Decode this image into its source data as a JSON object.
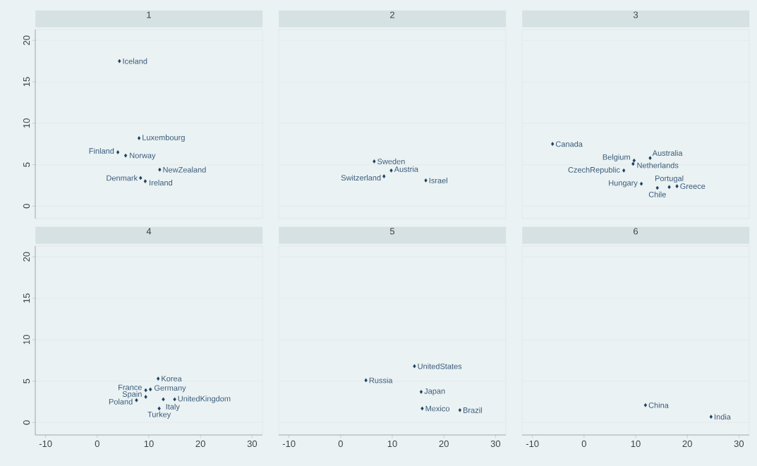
{
  "chart_data": [
    {
      "type": "scatter",
      "title": "1",
      "color": "#1c3d5e",
      "marker": "diamond",
      "grid": "y",
      "tick_labels": "y",
      "xlim": [
        -12,
        32
      ],
      "ylim": [
        -1.5,
        21.3
      ],
      "xticks": [
        -10,
        0,
        10,
        20,
        30
      ],
      "yticks": [
        0,
        5,
        10,
        15,
        20
      ],
      "x": [
        4.3,
        8.1,
        4.0,
        5.5,
        12.1,
        8.4,
        9.3
      ],
      "values": [
        17.5,
        8.2,
        6.5,
        6.1,
        4.4,
        3.4,
        3.0
      ],
      "annotations": [
        {
          "text": "Iceland",
          "x": 4.3,
          "y": 17.5
        },
        {
          "text": "Luxembourg",
          "x": 8.1,
          "y": 8.2
        },
        {
          "text": "Finland",
          "x": 4.0,
          "y": 6.5
        },
        {
          "text": "Norway",
          "x": 5.5,
          "y": 6.1
        },
        {
          "text": "NewZealand",
          "x": 12.1,
          "y": 4.4
        },
        {
          "text": "Denmark",
          "x": 8.4,
          "y": 3.4
        },
        {
          "text": "Ireland",
          "x": 9.3,
          "y": 3.0
        }
      ]
    },
    {
      "type": "scatter",
      "title": "2",
      "color": "#1c3d5e",
      "marker": "diamond",
      "grid": "y",
      "tick_labels": false,
      "xlim": [
        -12,
        32
      ],
      "ylim": [
        -1.5,
        21.3
      ],
      "xticks": [
        -10,
        0,
        10,
        20,
        30
      ],
      "yticks": [
        0,
        5,
        10,
        15,
        20
      ],
      "x": [
        6.5,
        9.8,
        8.4,
        16.5
      ],
      "values": [
        5.4,
        4.3,
        3.6,
        3.1
      ],
      "annotations": [
        {
          "text": "Sweden",
          "x": 6.5,
          "y": 5.4
        },
        {
          "text": "Austria",
          "x": 9.8,
          "y": 4.3
        },
        {
          "text": "Switzerland",
          "x": 8.4,
          "y": 3.6
        },
        {
          "text": "Israel",
          "x": 16.5,
          "y": 3.1
        }
      ]
    },
    {
      "type": "scatter",
      "title": "3",
      "color": "#1c3d5e",
      "marker": "diamond",
      "grid": "y",
      "tick_labels": false,
      "xlim": [
        -12,
        32
      ],
      "ylim": [
        -1.5,
        21.3
      ],
      "xticks": [
        -10,
        0,
        10,
        20,
        30
      ],
      "yticks": [
        0,
        5,
        10,
        15,
        20
      ],
      "x": [
        -6.1,
        12.8,
        9.7,
        9.5,
        7.7,
        11.1,
        18.0,
        14.2,
        16.5
      ],
      "values": [
        7.5,
        5.8,
        5.5,
        5.1,
        4.3,
        2.7,
        2.4,
        2.2,
        2.3
      ],
      "annotations": [
        {
          "text": "Canada",
          "x": -6.1,
          "y": 7.5
        },
        {
          "text": "Australia",
          "x": 12.8,
          "y": 5.8
        },
        {
          "text": "Belgium",
          "x": 9.7,
          "y": 5.5
        },
        {
          "text": "Netherlands",
          "x": 9.5,
          "y": 5.1
        },
        {
          "text": "CzechRepublic",
          "x": 7.7,
          "y": 4.3
        },
        {
          "text": "Hungary",
          "x": 11.1,
          "y": 2.7
        },
        {
          "text": "Greece",
          "x": 18.0,
          "y": 2.4
        },
        {
          "text": "Chile",
          "x": 14.2,
          "y": 2.2
        },
        {
          "text": "Portugal",
          "x": 16.5,
          "y": 2.3
        }
      ]
    },
    {
      "type": "scatter",
      "title": "4",
      "color": "#1c3d5e",
      "marker": "diamond",
      "grid": "y",
      "xlim": [
        -12,
        32
      ],
      "ylim": [
        -1.5,
        21.3
      ],
      "xticks": [
        -10,
        0,
        10,
        20,
        30
      ],
      "yticks": [
        0,
        5,
        10,
        15,
        20
      ],
      "x": [
        11.8,
        9.4,
        10.3,
        15.0,
        7.6,
        9.4,
        12.8,
        12.0
      ],
      "values": [
        5.3,
        3.9,
        4.0,
        2.8,
        2.7,
        3.1,
        2.8,
        1.7
      ],
      "annotations": [
        {
          "text": "Korea",
          "x": 11.8,
          "y": 5.3
        },
        {
          "text": "France",
          "x": 9.4,
          "y": 3.9
        },
        {
          "text": "Germany",
          "x": 10.3,
          "y": 4.0
        },
        {
          "text": "UnitedKingdom",
          "x": 15.0,
          "y": 2.8
        },
        {
          "text": "Poland",
          "x": 7.6,
          "y": 2.7
        },
        {
          "text": "Spain",
          "x": 9.4,
          "y": 3.1
        },
        {
          "text": "Italy",
          "x": 12.8,
          "y": 2.8
        },
        {
          "text": "Turkey",
          "x": 12.0,
          "y": 1.7
        }
      ]
    },
    {
      "type": "scatter",
      "title": "5",
      "color": "#1c3d5e",
      "marker": "diamond",
      "grid": "y",
      "tick_labels": "x",
      "xlim": [
        -12,
        32
      ],
      "ylim": [
        -1.5,
        21.3
      ],
      "xticks": [
        -10,
        0,
        10,
        20,
        30
      ],
      "yticks": [
        0,
        5,
        10,
        15,
        20
      ],
      "x": [
        14.3,
        4.9,
        15.6,
        15.8,
        23.1
      ],
      "values": [
        6.8,
        5.1,
        3.7,
        1.7,
        1.5
      ],
      "annotations": [
        {
          "text": "UnitedStates",
          "x": 14.3,
          "y": 6.8
        },
        {
          "text": "Russia",
          "x": 4.9,
          "y": 5.1
        },
        {
          "text": "Japan",
          "x": 15.6,
          "y": 3.7
        },
        {
          "text": "Mexico",
          "x": 15.8,
          "y": 1.7
        },
        {
          "text": "Brazil",
          "x": 23.1,
          "y": 1.5
        }
      ]
    },
    {
      "type": "scatter",
      "title": "6",
      "color": "#1c3d5e",
      "marker": "diamond",
      "grid": "y",
      "tick_labels": "x",
      "xlim": [
        -12,
        32
      ],
      "ylim": [
        -1.5,
        21.3
      ],
      "xticks": [
        -10,
        0,
        10,
        20,
        30
      ],
      "yticks": [
        0,
        5,
        10,
        15,
        20
      ],
      "x": [
        11.9,
        24.6
      ],
      "values": [
        2.1,
        0.7
      ],
      "annotations": [
        {
          "text": "China",
          "x": 11.9,
          "y": 2.1
        },
        {
          "text": "India",
          "x": 24.6,
          "y": 0.7
        }
      ]
    }
  ]
}
